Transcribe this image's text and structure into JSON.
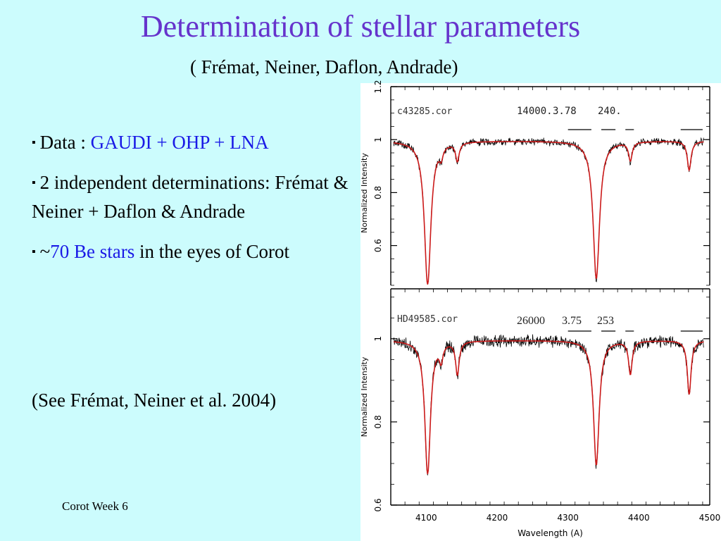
{
  "slide": {
    "title": "Determination of stellar parameters",
    "subtitle": "( Frémat, Neiner, Daflon, Andrade)",
    "bullets": [
      {
        "prefix": "Data : ",
        "highlight": "GAUDI + OHP + LNA",
        "suffix": ""
      },
      {
        "prefix": "2 independent determinations: Frémat & Neiner + Daflon & Andrade",
        "highlight": "",
        "suffix": ""
      },
      {
        "prefix": "~",
        "highlight": "70 Be stars",
        "suffix": " in the eyes of Corot"
      }
    ],
    "reference": "(See Frémat, Neiner et al. 2004)",
    "footer": "Corot Week 6",
    "bullet_marker": "▪",
    "colors": {
      "background": "#ccfcfd",
      "title": "#6633cc",
      "highlight": "#1a1ae6",
      "model": "#cc1a1a",
      "observed": "#000000"
    }
  },
  "chart_data": [
    {
      "type": "line",
      "label": "c43285.cor",
      "params": [
        "14000.",
        "3.78",
        "240."
      ],
      "ylabel": "Normalized Intensity",
      "xlabel": "",
      "xlim": [
        4050,
        4500
      ],
      "ylim": [
        0.45,
        1.2
      ],
      "yticks": [
        0.6,
        0.8,
        1,
        1.2
      ],
      "ytick_labels": [
        "0.6",
        "0.8",
        "1",
        "1.2"
      ],
      "xticks": [],
      "continuum": 0.995,
      "lines": [
        {
          "center": 4102,
          "depth": 0.54,
          "width": 5.5
        },
        {
          "center": 4121,
          "depth": 0.04,
          "width": 3
        },
        {
          "center": 4144,
          "depth": 0.07,
          "width": 3
        },
        {
          "center": 4340,
          "depth": 0.52,
          "width": 5.5
        },
        {
          "center": 4388,
          "depth": 0.07,
          "width": 3
        },
        {
          "center": 4471,
          "depth": 0.11,
          "width": 3.2
        }
      ],
      "marker_bars": [
        [
          4300,
          4333
        ],
        [
          4347,
          4367
        ],
        [
          4381,
          4393
        ],
        [
          4459,
          4490
        ]
      ]
    },
    {
      "type": "line",
      "label": "HD49585.cor",
      "params": [
        "26000",
        "3.75",
        "253"
      ],
      "ylabel": "Normalized Intensity",
      "xlabel": "Wavelength (A)",
      "xlim": [
        4050,
        4500
      ],
      "ylim": [
        0.6,
        1.12
      ],
      "yticks": [
        0.6,
        0.8,
        1
      ],
      "ytick_labels": [
        "0.6",
        "0.8",
        "1"
      ],
      "xticks": [
        4100,
        4200,
        4300,
        4400,
        4500
      ],
      "xtick_labels": [
        "4100",
        "4200",
        "4300",
        "4400",
        "4500"
      ],
      "continuum": 0.996,
      "lines": [
        {
          "center": 4102,
          "depth": 0.32,
          "width": 4.8
        },
        {
          "center": 4121,
          "depth": 0.04,
          "width": 3
        },
        {
          "center": 4144,
          "depth": 0.08,
          "width": 3
        },
        {
          "center": 4340,
          "depth": 0.3,
          "width": 4.8
        },
        {
          "center": 4388,
          "depth": 0.08,
          "width": 3
        },
        {
          "center": 4471,
          "depth": 0.13,
          "width": 3.2
        }
      ],
      "marker_bars": [
        [
          4300,
          4333
        ],
        [
          4347,
          4367
        ],
        [
          4381,
          4393
        ],
        [
          4459,
          4490
        ]
      ]
    }
  ]
}
